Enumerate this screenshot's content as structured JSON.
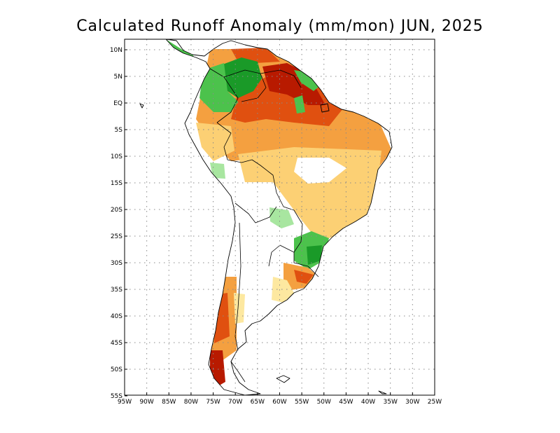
{
  "title": "Calculated Runoff Anomaly (mm/mon) JUN, 2025",
  "map": {
    "lon_range": [
      -95,
      -25
    ],
    "lat_range": [
      -55,
      13
    ],
    "y_ticks": [
      "10N",
      "5N",
      "EQ",
      "5S",
      "10S",
      "15S",
      "20S",
      "25S",
      "30S",
      "35S",
      "40S",
      "45S",
      "50S",
      "55S"
    ],
    "x_ticks": [
      "95W",
      "90W",
      "85W",
      "80W",
      "75W",
      "70W",
      "65W",
      "60W",
      "55W",
      "50W",
      "45W",
      "40W",
      "35W",
      "30W",
      "25W"
    ],
    "colors": {
      "strong_positive": "#1a9a28",
      "positive": "#4cc24c",
      "weak_positive": "#a8e6a0",
      "weak_negative": "#fde8a0",
      "negative_light": "#fcd074",
      "negative": "#f4a040",
      "strong_negative": "#e05010",
      "very_strong_negative": "#b81a00"
    }
  }
}
